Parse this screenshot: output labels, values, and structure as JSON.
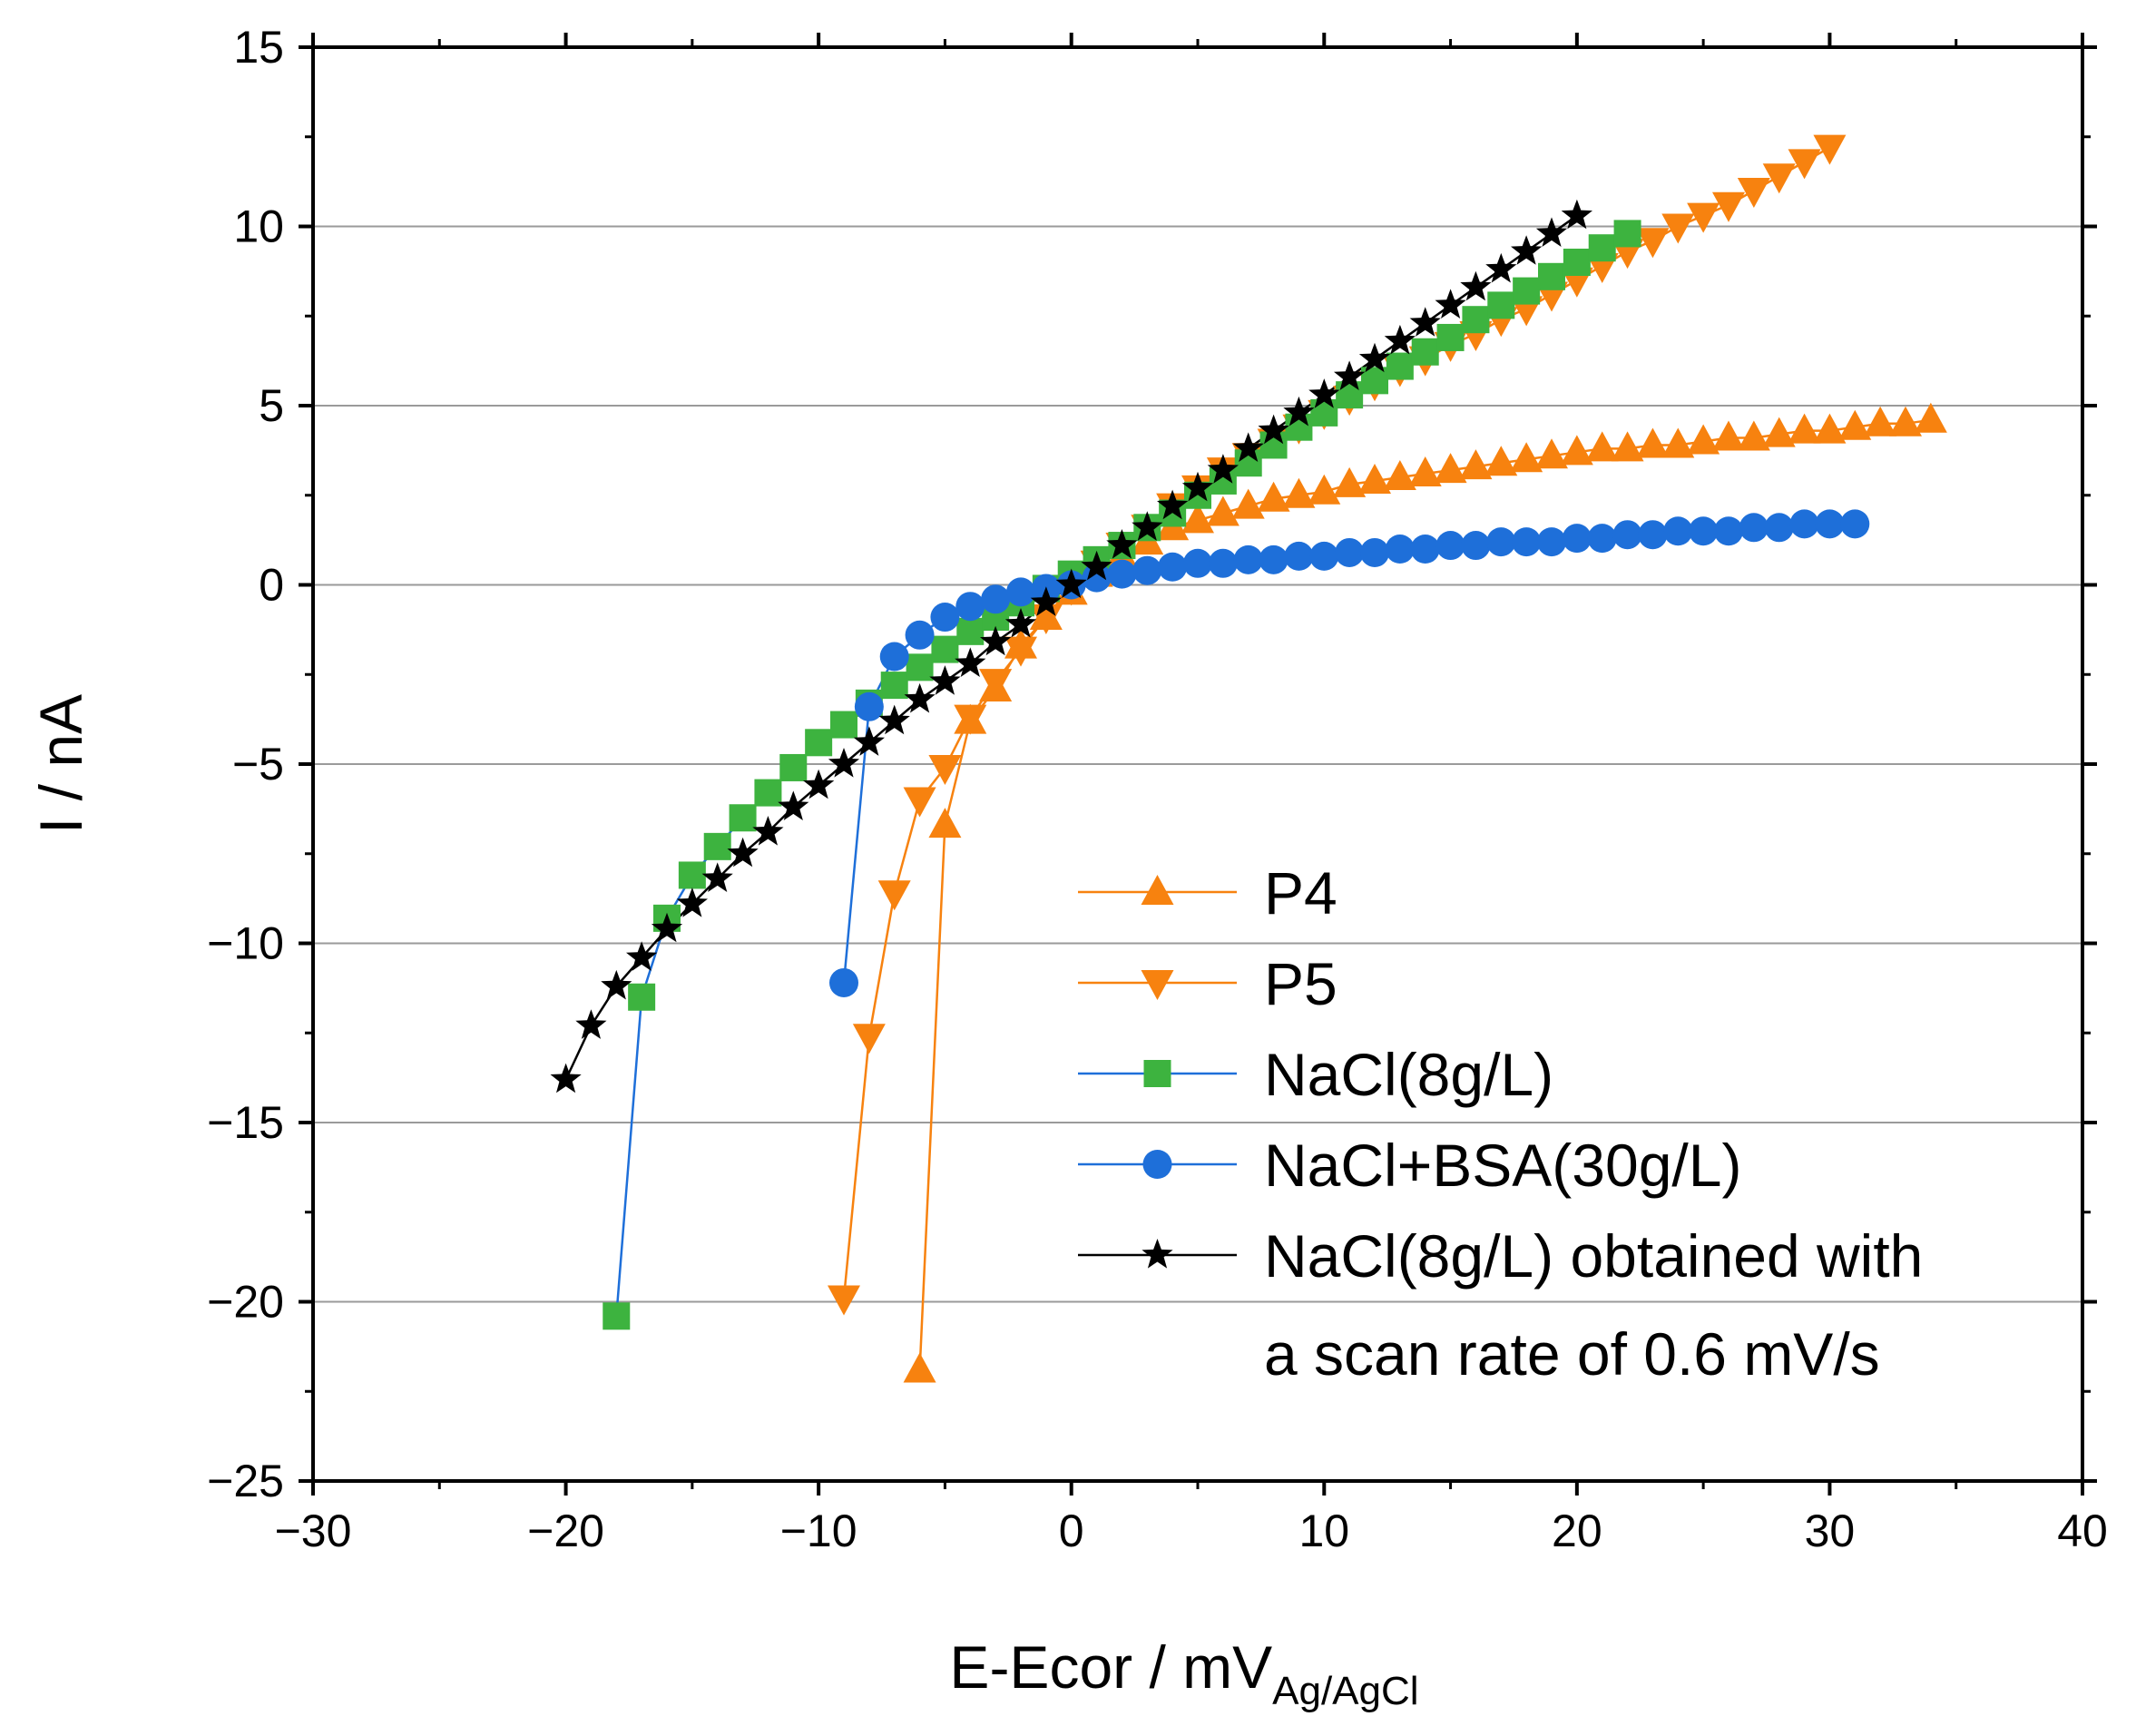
{
  "chart_data": {
    "type": "line",
    "title": "",
    "xlabel": "E-Ecor / mV",
    "xlabel_subscript": "Ag/AgCl",
    "ylabel": "I / nA",
    "xlim": [
      -30,
      40
    ],
    "ylim": [
      -25,
      15
    ],
    "x_ticks": [
      -30,
      -20,
      -10,
      0,
      10,
      20,
      30,
      40
    ],
    "x_tick_labels": [
      "−30",
      "−20",
      "−10",
      "0",
      "10",
      "20",
      "30",
      "40"
    ],
    "y_ticks": [
      -25,
      -20,
      -15,
      -10,
      -5,
      0,
      5,
      10,
      15
    ],
    "y_tick_labels": [
      "−25",
      "−20",
      "−15",
      "−10",
      "−5",
      "0",
      "5",
      "10",
      "15"
    ],
    "grid": "horizontal",
    "legend_position": "bottom-right",
    "series": [
      {
        "name": "P4",
        "legend_lines": [
          "P4"
        ],
        "marker": "triangle-up",
        "color": "#F7820F",
        "line_color": "#F7820F",
        "x": [
          -6,
          -5,
          -4,
          -3,
          -2,
          -1,
          0,
          1,
          2,
          3,
          4,
          5,
          6,
          7,
          8,
          9,
          10,
          11,
          12,
          13,
          14,
          15,
          16,
          17,
          18,
          19,
          20,
          21,
          22,
          23,
          24,
          25,
          26,
          27,
          28,
          29,
          30,
          31,
          32,
          33,
          34
        ],
        "y": [
          -21.9,
          -6.7,
          -3.8,
          -2.9,
          -1.7,
          -0.9,
          -0.2,
          0.3,
          0.8,
          1.2,
          1.6,
          1.8,
          2.0,
          2.2,
          2.4,
          2.5,
          2.6,
          2.8,
          2.9,
          3.0,
          3.1,
          3.2,
          3.3,
          3.4,
          3.5,
          3.6,
          3.7,
          3.8,
          3.8,
          3.9,
          3.9,
          4.0,
          4.1,
          4.1,
          4.2,
          4.3,
          4.3,
          4.4,
          4.5,
          4.5,
          4.6
        ]
      },
      {
        "name": "P5",
        "legend_lines": [
          "P5"
        ],
        "marker": "triangle-down",
        "color": "#F7820F",
        "line_color": "#F7820F",
        "x": [
          -9,
          -8,
          -7,
          -6,
          -5,
          -4,
          -3,
          -2,
          -1,
          0,
          1,
          2,
          3,
          4,
          5,
          6,
          7,
          8,
          9,
          10,
          11,
          12,
          13,
          14,
          15,
          16,
          17,
          18,
          19,
          20,
          21,
          22,
          23,
          24,
          25,
          26,
          27,
          28,
          29,
          30
        ],
        "y": [
          -19.9,
          -12.6,
          -8.6,
          -6.0,
          -5.1,
          -3.7,
          -2.7,
          -1.8,
          -0.9,
          -0.1,
          0.6,
          1.1,
          1.6,
          2.2,
          2.7,
          3.2,
          3.6,
          4.0,
          4.4,
          4.8,
          5.2,
          5.6,
          6.0,
          6.3,
          6.7,
          7.0,
          7.4,
          7.7,
          8.1,
          8.5,
          8.9,
          9.3,
          9.6,
          10.0,
          10.3,
          10.6,
          11.0,
          11.4,
          11.8,
          12.2
        ]
      },
      {
        "name": "NaCl(8g/L)",
        "legend_lines": [
          "NaCl(8g/L)"
        ],
        "marker": "square",
        "color": "#3DB33F",
        "line_color": "#1E6FD9",
        "x": [
          -18,
          -17,
          -16,
          -15,
          -14,
          -13,
          -12,
          -11,
          -10,
          -9,
          -8,
          -7,
          -6,
          -5,
          -4,
          -3,
          -2,
          -1,
          0,
          1,
          2,
          3,
          4,
          5,
          6,
          7,
          8,
          9,
          10,
          11,
          12,
          13,
          14,
          15,
          16,
          17,
          18,
          19,
          20,
          21,
          22
        ],
        "y": [
          -20.4,
          -11.5,
          -9.3,
          -8.1,
          -7.3,
          -6.5,
          -5.8,
          -5.1,
          -4.4,
          -3.9,
          -3.3,
          -2.8,
          -2.3,
          -1.8,
          -1.3,
          -0.9,
          -0.5,
          -0.1,
          0.3,
          0.7,
          1.1,
          1.6,
          2.0,
          2.5,
          2.9,
          3.4,
          3.9,
          4.4,
          4.8,
          5.3,
          5.7,
          6.1,
          6.5,
          6.9,
          7.4,
          7.8,
          8.2,
          8.6,
          9.0,
          9.4,
          9.8
        ]
      },
      {
        "name": "NaCl+BSA(30g/L)",
        "legend_lines": [
          "NaCl+BSA(30g/L)"
        ],
        "marker": "circle",
        "color": "#1E6FD9",
        "line_color": "#1E6FD9",
        "x": [
          -9,
          -8,
          -7,
          -6,
          -5,
          -4,
          -3,
          -2,
          -1,
          0,
          1,
          2,
          3,
          4,
          5,
          6,
          7,
          8,
          9,
          10,
          11,
          12,
          13,
          14,
          15,
          16,
          17,
          18,
          19,
          20,
          21,
          22,
          23,
          24,
          25,
          26,
          27,
          28,
          29,
          30,
          31
        ],
        "y": [
          -11.1,
          -3.4,
          -2.0,
          -1.4,
          -0.9,
          -0.6,
          -0.4,
          -0.2,
          -0.1,
          0.0,
          0.2,
          0.3,
          0.4,
          0.5,
          0.6,
          0.6,
          0.7,
          0.7,
          0.8,
          0.8,
          0.9,
          0.9,
          1.0,
          1.0,
          1.1,
          1.1,
          1.2,
          1.2,
          1.2,
          1.3,
          1.3,
          1.4,
          1.4,
          1.5,
          1.5,
          1.5,
          1.6,
          1.6,
          1.7,
          1.7,
          1.7
        ]
      },
      {
        "name": "NaCl(8g/L) obtained with a scan rate of 0.6 mV/s",
        "legend_lines": [
          "NaCl(8g/L) obtained with",
          "a scan rate of 0.6 mV/s"
        ],
        "marker": "star",
        "color": "#000000",
        "line_color": "#000000",
        "x": [
          -20,
          -19,
          -18,
          -17,
          -16,
          -15,
          -14,
          -13,
          -12,
          -11,
          -10,
          -9,
          -8,
          -7,
          -6,
          -5,
          -4,
          -3,
          -2,
          -1,
          0,
          1,
          2,
          3,
          4,
          5,
          6,
          7,
          8,
          9,
          10,
          11,
          12,
          13,
          14,
          15,
          16,
          17,
          18,
          19,
          20
        ],
        "y": [
          -13.8,
          -12.3,
          -11.2,
          -10.4,
          -9.6,
          -8.9,
          -8.2,
          -7.5,
          -6.9,
          -6.2,
          -5.6,
          -5.0,
          -4.4,
          -3.8,
          -3.2,
          -2.7,
          -2.2,
          -1.6,
          -1.1,
          -0.5,
          0.0,
          0.5,
          1.1,
          1.6,
          2.2,
          2.7,
          3.2,
          3.8,
          4.3,
          4.8,
          5.3,
          5.8,
          6.3,
          6.8,
          7.3,
          7.8,
          8.3,
          8.8,
          9.3,
          9.8,
          10.3
        ]
      }
    ]
  }
}
